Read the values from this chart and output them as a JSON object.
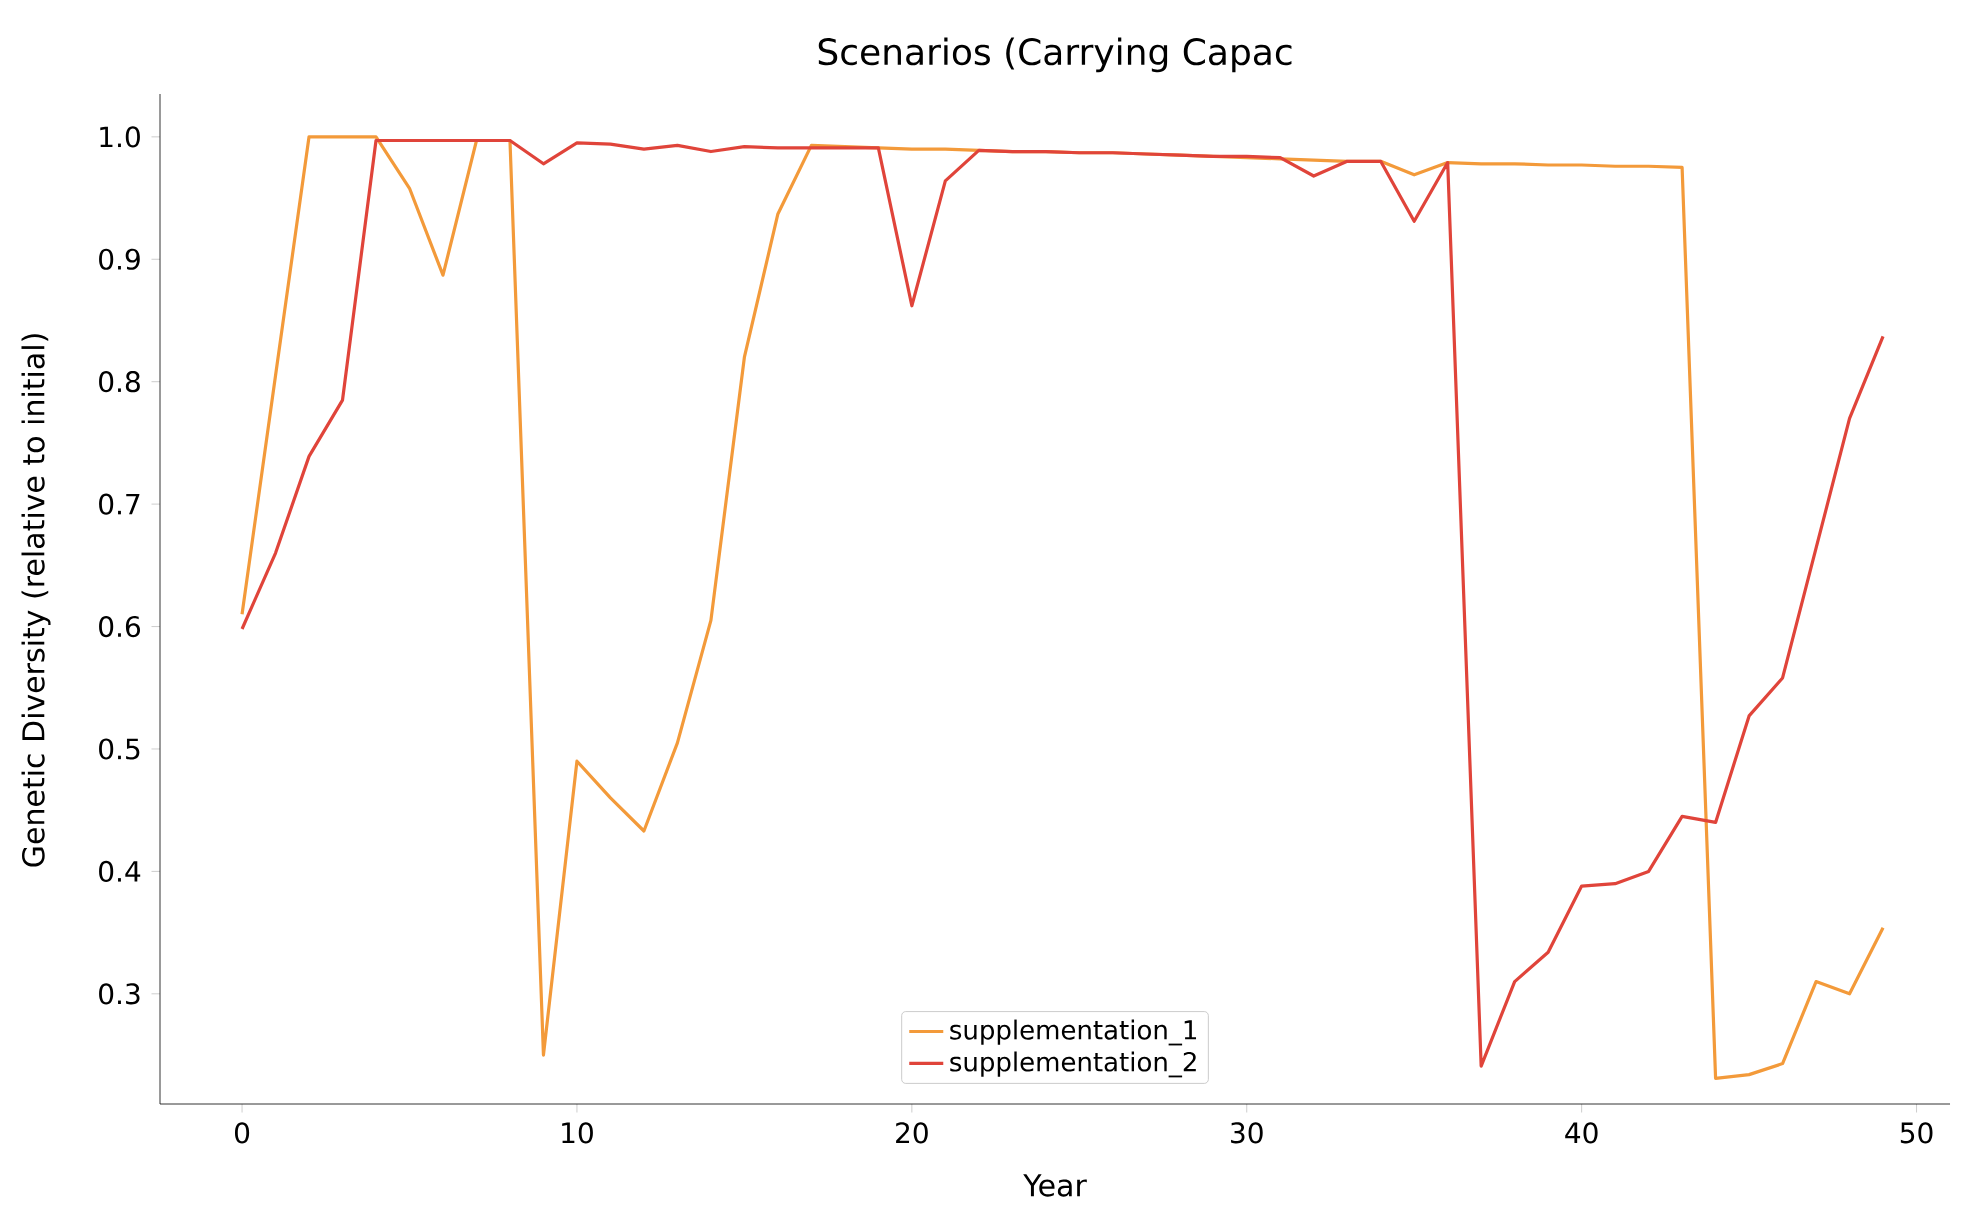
{
  "chart_data": {
    "type": "line",
    "title": "Scenarios (Carrying Capac",
    "xlabel": "Year",
    "ylabel": "Genetic Diversity (relative to initial)",
    "x": [
      0,
      1,
      2,
      3,
      4,
      5,
      6,
      7,
      8,
      9,
      10,
      11,
      12,
      13,
      14,
      15,
      16,
      17,
      18,
      19,
      20,
      21,
      22,
      23,
      24,
      25,
      26,
      27,
      28,
      29,
      30,
      31,
      32,
      33,
      34,
      35,
      36,
      37,
      38,
      39,
      40,
      41,
      42,
      43,
      44,
      45,
      46,
      47,
      48,
      49
    ],
    "series": [
      {
        "name": "supplementation_1",
        "color": "#f39a3a",
        "values": [
          0.61,
          0.805,
          1.0,
          1.0,
          1.0,
          0.958,
          0.887,
          0.997,
          0.997,
          0.25,
          0.49,
          0.46,
          0.433,
          0.505,
          0.605,
          0.82,
          0.937,
          0.993,
          0.992,
          0.991,
          0.99,
          0.99,
          0.989,
          0.988,
          0.988,
          0.987,
          0.987,
          0.986,
          0.985,
          0.984,
          0.983,
          0.982,
          0.981,
          0.98,
          0.98,
          0.969,
          0.979,
          0.978,
          0.978,
          0.977,
          0.977,
          0.976,
          0.976,
          0.975,
          0.231,
          0.234,
          0.243,
          0.31,
          0.3,
          0.354
        ]
      },
      {
        "name": "supplementation_2",
        "color": "#e0443a",
        "values": [
          0.598,
          0.66,
          0.739,
          0.785,
          0.997,
          0.997,
          0.997,
          0.997,
          0.997,
          0.978,
          0.995,
          0.994,
          0.99,
          0.993,
          0.988,
          0.992,
          0.991,
          0.991,
          0.991,
          0.991,
          0.862,
          0.964,
          0.989,
          0.988,
          0.988,
          0.987,
          0.987,
          0.986,
          0.985,
          0.984,
          0.984,
          0.983,
          0.968,
          0.98,
          0.98,
          0.931,
          0.979,
          0.241,
          0.31,
          0.334,
          0.388,
          0.39,
          0.4,
          0.445,
          0.44,
          0.527,
          0.558,
          0.664,
          0.77,
          0.837
        ]
      }
    ],
    "xlim": [
      -2.45,
      51
    ],
    "ylim": [
      0.21,
      1.035
    ],
    "xticks": [
      0,
      10,
      20,
      30,
      40,
      50
    ],
    "yticks": [
      0.3,
      0.4,
      0.5,
      0.6,
      0.7,
      0.8,
      0.9,
      {
        "value": 1.0,
        "label": "1.0"
      }
    ],
    "legend": "bottom"
  }
}
